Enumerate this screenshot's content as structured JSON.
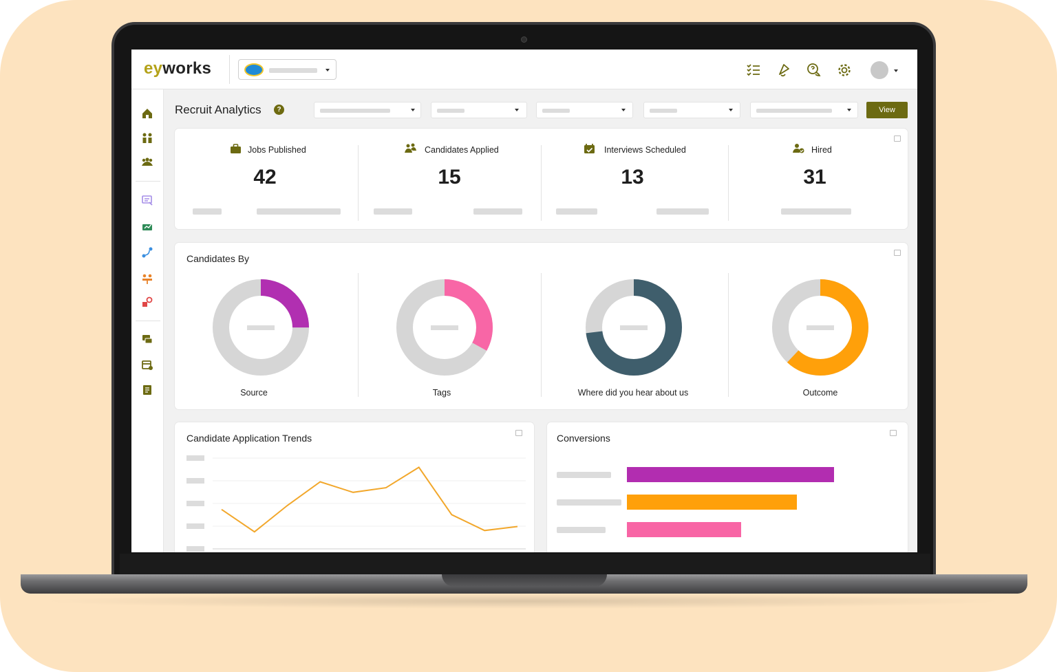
{
  "header": {
    "logo_prefix": "ey",
    "logo_suffix": "works",
    "icons": [
      "checklist-icon",
      "notification-bell-icon",
      "chat-help-icon",
      "gear-icon",
      "avatar"
    ]
  },
  "toolbar": {
    "title": "Recruit Analytics",
    "help_glyph": "?",
    "view_label": "View"
  },
  "kpis": [
    {
      "label": "Jobs Published",
      "value": "42",
      "icon": "briefcase-icon"
    },
    {
      "label": "Candidates Applied",
      "value": "15",
      "icon": "users-icon"
    },
    {
      "label": "Interviews Scheduled",
      "value": "13",
      "icon": "calendar-check-icon"
    },
    {
      "label": "Hired",
      "value": "31",
      "icon": "user-check-icon"
    }
  ],
  "candidates_by": {
    "title": "Candidates By",
    "donuts": [
      {
        "label": "Source",
        "fraction": 0.25,
        "color": "#b12fb1"
      },
      {
        "label": "Tags",
        "fraction": 0.33,
        "color": "#f866a6"
      },
      {
        "label": "Where did you hear about us",
        "fraction": 0.73,
        "color": "#3f5e6c"
      },
      {
        "label": "Outcome",
        "fraction": 0.62,
        "color": "#ffa00a"
      }
    ]
  },
  "trends": {
    "title": "Candidate Application Trends",
    "line_color": "#f2a72b"
  },
  "conversions": {
    "title": "Conversions"
  },
  "chart_data": [
    {
      "type": "line",
      "title": "Candidate Application Trends",
      "x": [
        1,
        2,
        3,
        4,
        5,
        6,
        7,
        8,
        9,
        10
      ],
      "values": [
        62,
        28,
        68,
        104,
        88,
        95,
        126,
        54,
        30,
        36
      ],
      "ylim": [
        0,
        140
      ]
    },
    {
      "type": "bar",
      "title": "Conversions",
      "orientation": "horizontal",
      "values": [
        100,
        82,
        55
      ],
      "colors": [
        "#b22db0",
        "#ffa00a",
        "#f865a5"
      ],
      "xlim": [
        0,
        100
      ]
    }
  ]
}
